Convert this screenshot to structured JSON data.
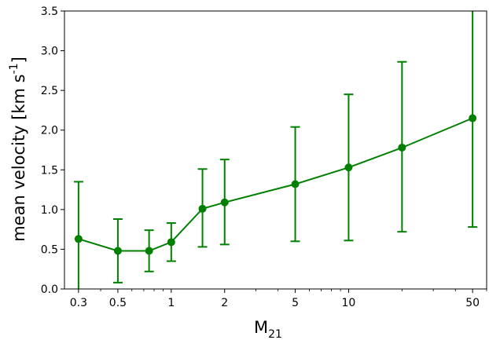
{
  "chart_data": {
    "type": "line",
    "title": "",
    "xlabel": "M",
    "xlabel_sub": "21",
    "ylabel": "mean velocity [km s",
    "ylabel_sup": "-1",
    "ylabel_end": "]",
    "xscale": "log",
    "xlim": [
      0.25,
      60
    ],
    "ylim": [
      0.0,
      3.5
    ],
    "grid": false,
    "legend": "none",
    "color": "#008000",
    "x_ticks": [
      0.3,
      0.5,
      1,
      2,
      5,
      10,
      50
    ],
    "x_tick_labels": [
      "0.3",
      "0.5",
      "1",
      "2",
      "5",
      "10",
      "50"
    ],
    "y_ticks": [
      0.0,
      0.5,
      1.0,
      1.5,
      2.0,
      2.5,
      3.0,
      3.5
    ],
    "y_tick_labels": [
      "0.0",
      "0.5",
      "1.0",
      "1.5",
      "2.0",
      "2.5",
      "3.0",
      "3.5"
    ],
    "series": [
      {
        "x": [
          0.3,
          0.5,
          0.75,
          1,
          1.5,
          2,
          5,
          10,
          20,
          50
        ],
        "y": [
          0.63,
          0.48,
          0.48,
          0.59,
          1.01,
          1.09,
          1.32,
          1.53,
          1.78,
          2.15
        ],
        "err_low": [
          0.0,
          0.08,
          0.22,
          0.35,
          0.53,
          0.56,
          0.6,
          0.61,
          0.72,
          0.78
        ],
        "err_high": [
          1.35,
          0.88,
          0.74,
          0.83,
          1.51,
          1.63,
          2.04,
          2.45,
          2.86,
          3.55
        ]
      }
    ]
  }
}
